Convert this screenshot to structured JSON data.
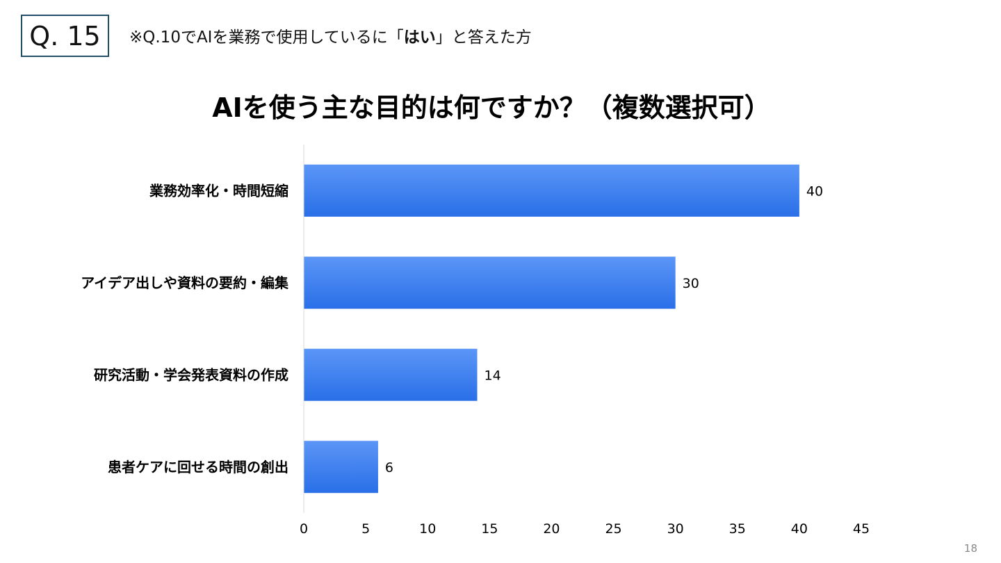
{
  "header": {
    "question_number": "Q. 15",
    "note_prefix": "※Q.10でAIを業務で使用しているに「",
    "note_bold": "はい",
    "note_suffix": "」と答えた方"
  },
  "page_number": "18",
  "colors": {
    "bar_top": "#5b96f7",
    "bar_bottom": "#2a6fe8",
    "axis": "#d9d9d9",
    "qbox_border": "#1f4e66"
  },
  "chart_data": {
    "type": "bar",
    "orientation": "horizontal",
    "title": "AIを使う主な目的は何ですか？（複数選択可）",
    "categories": [
      "業務効率化・時間短縮",
      "アイデア出しや資料の要約・編集",
      "研究活動・学会発表資料の作成",
      "患者ケアに回せる時間の創出"
    ],
    "values": [
      40,
      30,
      14,
      6
    ],
    "xlim": [
      0,
      45
    ],
    "xticks": [
      0,
      5,
      10,
      15,
      20,
      25,
      30,
      35,
      40,
      45
    ],
    "xlabel": "",
    "ylabel": "",
    "grid": false,
    "legend": "none",
    "data_labels": true
  }
}
